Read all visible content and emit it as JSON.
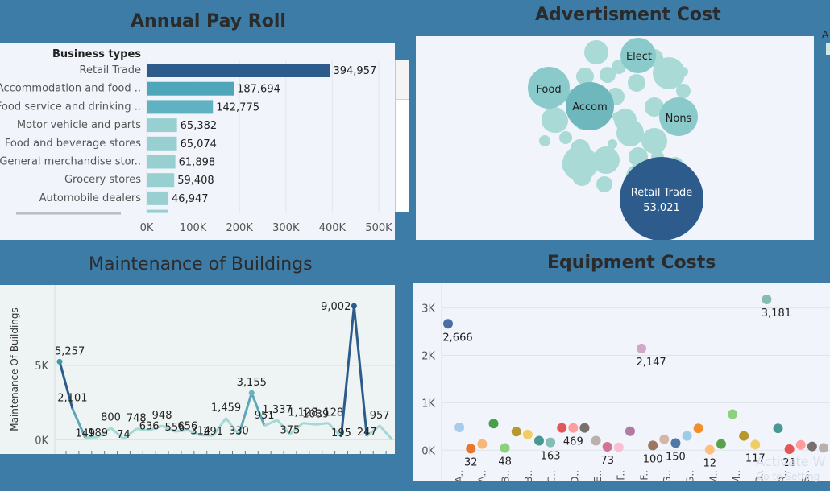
{
  "titles": {
    "payroll": "Annual Pay Roll",
    "advert": "Advertisment Cost",
    "maintenance": "Maintenance of Buildings",
    "equipment": "Equipment Costs"
  },
  "legend_fragment": "A",
  "watermark": {
    "line1": "Activate W",
    "line2": "Go to Setting"
  },
  "colors": {
    "dark_blue": "#2c5b8c",
    "teal": "#4ea6b8",
    "light_teal": "#98d0d2",
    "bubble": "#a9dad6"
  },
  "chart_data": [
    {
      "id": "payroll",
      "type": "bar",
      "orientation": "horizontal",
      "title": "Annual Pay Roll",
      "category_header": "Business types",
      "categories": [
        "Retail Trade",
        "Accommodation and food ..",
        "Food service and drinking ..",
        "Motor vehicle and parts",
        "Food and beverage stores",
        "General merchandise stor..",
        "Grocery stores",
        "Automobile dealers"
      ],
      "values": [
        394957,
        187694,
        142775,
        65382,
        65074,
        61898,
        59408,
        46947
      ],
      "value_labels": [
        "394,957",
        "187,694",
        "142,775",
        "65,382",
        "65,074",
        "61,898",
        "59,408",
        "46,947"
      ],
      "xlim": [
        0,
        500000
      ],
      "xticks": [
        "0K",
        "100K",
        "200K",
        "300K",
        "400K",
        "500K"
      ],
      "xtick_values": [
        0,
        100000,
        200000,
        300000,
        400000,
        500000
      ]
    },
    {
      "id": "advert",
      "type": "bubble",
      "title": "Advertisment Cost",
      "labeled": [
        {
          "label": "Retail Trade",
          "value": 53021,
          "value_label": "53,021"
        },
        {
          "label": "Accom"
        },
        {
          "label": "Food"
        },
        {
          "label": "Elect"
        },
        {
          "label": "Nons"
        }
      ]
    },
    {
      "id": "maintenance",
      "type": "line",
      "title": "Maintenance of Buildings",
      "ylabel": "Maintenance Of Buildings",
      "yticks": [
        "0K",
        "5K"
      ],
      "ytick_values": [
        0,
        5000
      ],
      "ylim": [
        -300,
        10200
      ],
      "values": [
        5257,
        2101,
        149,
        189,
        800,
        74,
        748,
        636,
        948,
        556,
        656,
        314,
        291,
        1459,
        330,
        3155,
        951,
        1337,
        375,
        1128,
        1039,
        1128,
        195,
        9002,
        247,
        957,
        0
      ],
      "labels": [
        "5,257",
        "2,101",
        "149",
        "189",
        "800",
        "74",
        "748",
        "636",
        "948",
        "556",
        "656",
        "314",
        "291",
        "1,459",
        "330",
        "3,155",
        "951",
        "1,337",
        "375",
        "1,128",
        "1039",
        "1,128",
        "195",
        "9,002",
        "247",
        "957",
        ""
      ]
    },
    {
      "id": "equipment",
      "type": "scatter",
      "title": "Equipment Costs",
      "yticks": [
        "0K",
        "1K",
        "2K",
        "3K"
      ],
      "ytick_values": [
        0,
        1000,
        2000,
        3000
      ],
      "ylim": [
        -250,
        3350
      ],
      "xlabels": [
        "A..",
        "A..",
        "B..",
        "B..",
        "C..",
        "D..",
        "E..",
        "F..",
        "F..",
        "G..",
        "G..",
        "M..",
        "M..",
        "O..",
        "R..",
        "S.."
      ],
      "points": [
        {
          "y": 2666,
          "label": "2,666",
          "color": "#4a6fa5"
        },
        {
          "y": 480,
          "label": "",
          "color": "#a6cdea"
        },
        {
          "y": 32,
          "label": "32",
          "color": "#e8772e"
        },
        {
          "y": 130,
          "label": "",
          "color": "#f7b67a"
        },
        {
          "y": 560,
          "label": "",
          "color": "#4aa04a"
        },
        {
          "y": 48,
          "label": "48",
          "color": "#8ed07a"
        },
        {
          "y": 390,
          "label": "",
          "color": "#b6992d"
        },
        {
          "y": 330,
          "label": "",
          "color": "#f1ce63"
        },
        {
          "y": 200,
          "label": "",
          "color": "#499894"
        },
        {
          "y": 163,
          "label": "163",
          "color": "#86bcb6"
        },
        {
          "y": 469,
          "label": "",
          "color": "#e15759"
        },
        {
          "y": 469,
          "label": "469",
          "color": "#ff9d9a"
        },
        {
          "y": 469,
          "label": "",
          "color": "#79706e"
        },
        {
          "y": 200,
          "label": "",
          "color": "#bab0ac"
        },
        {
          "y": 73,
          "label": "73",
          "color": "#d37295"
        },
        {
          "y": 60,
          "label": "",
          "color": "#fabfd2"
        },
        {
          "y": 400,
          "label": "",
          "color": "#b07aa1"
        },
        {
          "y": 2147,
          "label": "2,147",
          "color": "#d4a6c8"
        },
        {
          "y": 100,
          "label": "100",
          "color": "#9d7660"
        },
        {
          "y": 230,
          "label": "",
          "color": "#d7b5a6"
        },
        {
          "y": 150,
          "label": "150",
          "color": "#4e79a7"
        },
        {
          "y": 300,
          "label": "",
          "color": "#a0cbe8"
        },
        {
          "y": 460,
          "label": "",
          "color": "#f28e2b"
        },
        {
          "y": 12,
          "label": "12",
          "color": "#ffbe7d"
        },
        {
          "y": 130,
          "label": "",
          "color": "#59a14f"
        },
        {
          "y": 760,
          "label": "",
          "color": "#8cd17d"
        },
        {
          "y": 300,
          "label": "",
          "color": "#b6992d"
        },
        {
          "y": 117,
          "label": "117",
          "color": "#f1ce63"
        },
        {
          "y": 3181,
          "label": "3,181",
          "color": "#86bcb6"
        },
        {
          "y": 460,
          "label": "",
          "color": "#499894"
        },
        {
          "y": 21,
          "label": "21",
          "color": "#e15759"
        },
        {
          "y": 110,
          "label": "",
          "color": "#ff9d9a"
        },
        {
          "y": 80,
          "label": "",
          "color": "#79706e"
        },
        {
          "y": 50,
          "label": "",
          "color": "#bab0ac"
        }
      ]
    }
  ]
}
